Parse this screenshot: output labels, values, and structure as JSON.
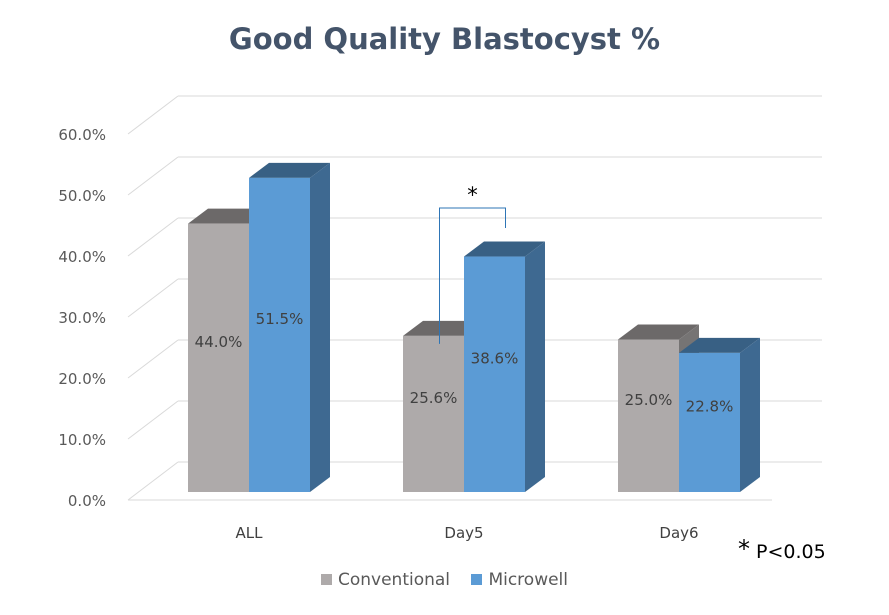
{
  "chart_data": {
    "type": "bar",
    "title": "Good Quality Blastocyst %",
    "categories": [
      "ALL",
      "Day5",
      "Day6"
    ],
    "series": [
      {
        "name": "Conventional",
        "values": [
          44.0,
          25.6,
          25.0
        ],
        "labels": [
          "44.0%",
          "25.6%",
          "25.0%"
        ],
        "color": "#aeaaaa"
      },
      {
        "name": "Microwell",
        "values": [
          51.5,
          38.6,
          22.8
        ],
        "labels": [
          "51.5%",
          "38.6%",
          "22.8%"
        ],
        "color": "#5b9bd5"
      }
    ],
    "y_ticks": [
      "0.0%",
      "10.0%",
      "20.0%",
      "30.0%",
      "40.0%",
      "50.0%",
      "60.0%"
    ],
    "ylim": [
      0,
      60
    ],
    "grid": true,
    "legend_position": "bottom",
    "significance": {
      "category": "Day5",
      "marker": "*"
    },
    "footnote": {
      "marker": "*",
      "text": "P<0.05"
    }
  }
}
